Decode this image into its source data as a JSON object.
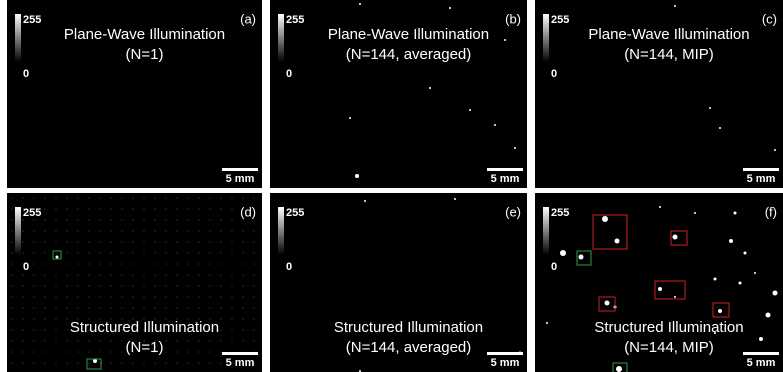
{
  "panels": [
    {
      "label": "(a)",
      "title": [
        "Plane-Wave Illumination",
        "(N=1)"
      ],
      "cbar_max": "255",
      "cbar_min": "0",
      "scale": "5 mm"
    },
    {
      "label": "(b)",
      "title": [
        "Plane-Wave Illumination",
        "(N=144, averaged)"
      ],
      "cbar_max": "255",
      "cbar_min": "0",
      "scale": "5 mm"
    },
    {
      "label": "(c)",
      "title": [
        "Plane-Wave Illumination",
        "(N=144, MIP)"
      ],
      "cbar_max": "255",
      "cbar_min": "0",
      "scale": "5 mm"
    },
    {
      "label": "(d)",
      "title": [
        "Structured Illumination",
        "(N=1)"
      ],
      "cbar_max": "255",
      "cbar_min": "0",
      "scale": "5 mm"
    },
    {
      "label": "(e)",
      "title": [
        "Structured Illumination",
        "(N=144, averaged)"
      ],
      "cbar_max": "255",
      "cbar_min": "0",
      "scale": "5 mm"
    },
    {
      "label": "(f)",
      "title": [
        "Structured Illumination",
        "(N=144, MIP)"
      ],
      "cbar_max": "255",
      "cbar_min": "0",
      "scale": "5 mm"
    }
  ]
}
